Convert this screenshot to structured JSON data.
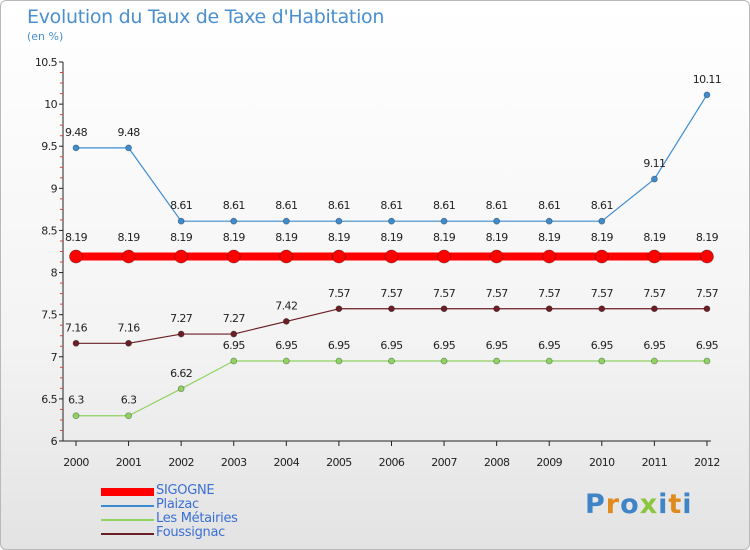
{
  "title": "Evolution du Taux de Taxe d'Habitation",
  "unit": "(en %)",
  "logo": {
    "letters": [
      "P",
      "r",
      "o",
      "x",
      "i",
      "t",
      "i"
    ],
    "colors": [
      "#3f84c6",
      "#e08a1e",
      "#3f84c6",
      "#8cc63f",
      "#3f84c6",
      "#e08a1e",
      "#3f84c6"
    ]
  },
  "chart_data": {
    "type": "line",
    "title": "Evolution du Taux de Taxe d'Habitation",
    "ylabel": "(en %)",
    "xlabel": "",
    "ylim": [
      6,
      10.5
    ],
    "yticks": [
      "6",
      "6.5",
      "7",
      "7.5",
      "8",
      "8.5",
      "9",
      "9.5",
      "10",
      "10.5"
    ],
    "categories": [
      "2000",
      "2001",
      "2002",
      "2003",
      "2004",
      "2005",
      "2006",
      "2007",
      "2008",
      "2009",
      "2010",
      "2011",
      "2012"
    ],
    "series": [
      {
        "name": "SIGOGNE",
        "color": "#ff0000",
        "values": [
          8.19,
          8.19,
          8.19,
          8.19,
          8.19,
          8.19,
          8.19,
          8.19,
          8.19,
          8.19,
          8.19,
          8.19,
          8.19
        ],
        "labels": [
          "8.19",
          "8.19",
          "8.19",
          "8.19",
          "8.19",
          "8.19",
          "8.19",
          "8.19",
          "8.19",
          "8.19",
          "8.19",
          "8.19",
          "8.19"
        ]
      },
      {
        "name": "Plaizac",
        "color": "#3d8ccf",
        "values": [
          9.48,
          9.48,
          8.61,
          8.61,
          8.61,
          8.61,
          8.61,
          8.61,
          8.61,
          8.61,
          8.61,
          9.11,
          10.11
        ],
        "labels": [
          "9.48",
          "9.48",
          "8.61",
          "8.61",
          "8.61",
          "8.61",
          "8.61",
          "8.61",
          "8.61",
          "8.61",
          "8.61",
          "9.11",
          "10.11"
        ]
      },
      {
        "name": "Les Métairies",
        "color": "#8fd361",
        "values": [
          6.3,
          6.3,
          6.62,
          6.95,
          6.95,
          6.95,
          6.95,
          6.95,
          6.95,
          6.95,
          6.95,
          6.95,
          6.95
        ],
        "labels": [
          "6.3",
          "6.3",
          "6.62",
          "6.95",
          "6.95",
          "6.95",
          "6.95",
          "6.95",
          "6.95",
          "6.95",
          "6.95",
          "6.95",
          "6.95"
        ]
      },
      {
        "name": "Foussignac",
        "color": "#6b1f24",
        "values": [
          7.16,
          7.16,
          7.27,
          7.27,
          7.42,
          7.57,
          7.57,
          7.57,
          7.57,
          7.57,
          7.57,
          7.57,
          7.57
        ],
        "labels": [
          "7.16",
          "7.16",
          "7.27",
          "7.27",
          "7.42",
          "7.57",
          "7.57",
          "7.57",
          "7.57",
          "7.57",
          "7.57",
          "7.57",
          "7.57"
        ]
      }
    ]
  }
}
